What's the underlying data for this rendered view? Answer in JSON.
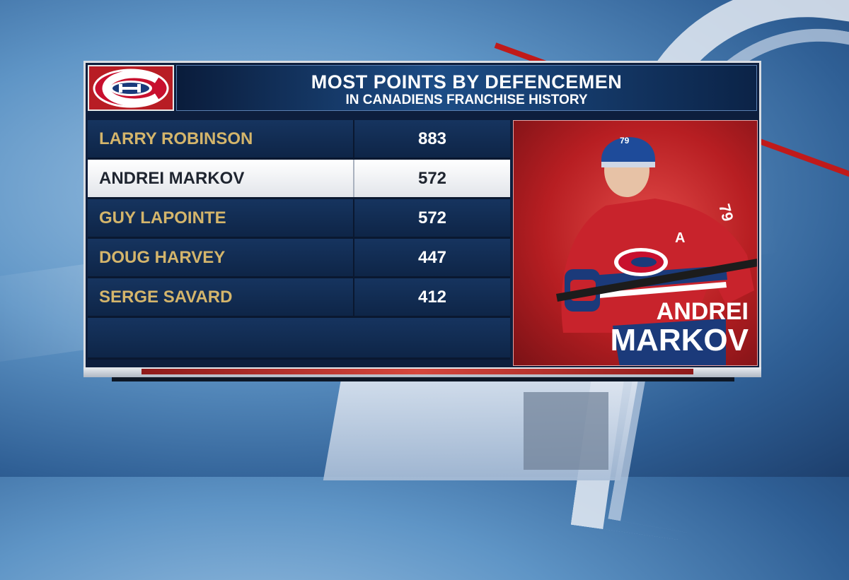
{
  "header": {
    "title": "MOST POINTS BY DEFENCEMEN",
    "subtitle": "IN CANADIENS FRANCHISE HISTORY"
  },
  "logo": {
    "name": "canadiens-logo"
  },
  "rows": [
    {
      "name": "LARRY ROBINSON",
      "points": "883",
      "highlight": false
    },
    {
      "name": "ANDREI MARKOV",
      "points": "572",
      "highlight": true
    },
    {
      "name": "GUY LAPOINTE",
      "points": "572",
      "highlight": false
    },
    {
      "name": "DOUG HARVEY",
      "points": "447",
      "highlight": false
    },
    {
      "name": "SERGE SAVARD",
      "points": "412",
      "highlight": false
    }
  ],
  "featured_player": {
    "first_name": "ANDREI",
    "last_name": "MARKOV",
    "jersey_number": "79",
    "captain_letter": "A"
  },
  "colors": {
    "gold": "#d4b56b",
    "navy": "#0d1e3d",
    "red": "#b81d24"
  }
}
